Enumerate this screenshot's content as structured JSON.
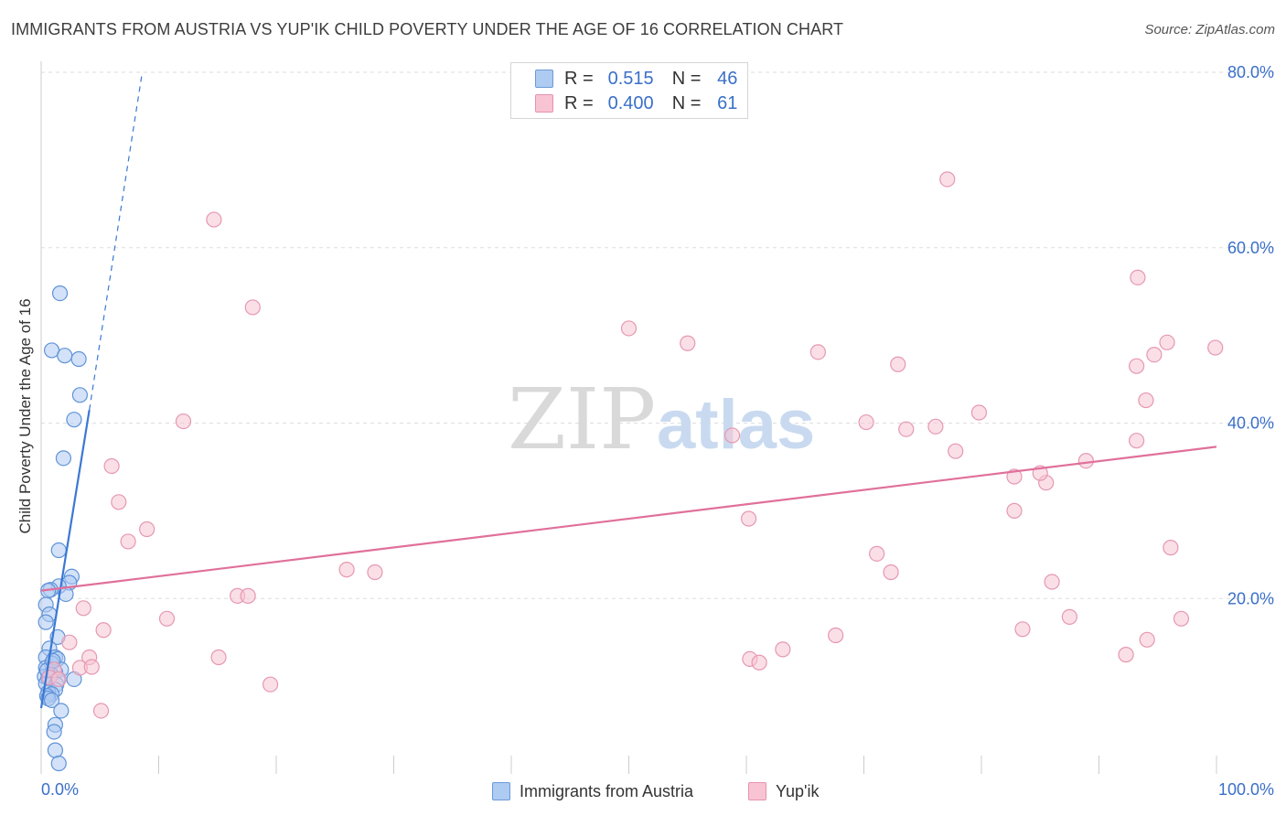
{
  "title": "IMMIGRANTS FROM AUSTRIA VS YUP'IK CHILD POVERTY UNDER THE AGE OF 16 CORRELATION CHART",
  "source": "Source: ZipAtlas.com",
  "watermark": {
    "zip": "ZIP",
    "atlas": "atlas"
  },
  "colors": {
    "blue": "#3a78d4",
    "blue_fill": "#aecbf2",
    "pink": "#e0709a",
    "pink_fill": "#f8c4d4",
    "grid": "#dddddd",
    "tick_label": "#3a6fc8"
  },
  "legend": {
    "r_key": "R =",
    "n_key": "N =",
    "rows": [
      {
        "r": "0.515",
        "n": "46"
      },
      {
        "r": "0.400",
        "n": "61"
      }
    ]
  },
  "bottom_legend": [
    "Immigrants from Austria",
    "Yup'ik"
  ],
  "chart_data": {
    "type": "scatter",
    "title": "IMMIGRANTS FROM AUSTRIA VS YUP'IK CHILD POVERTY UNDER THE AGE OF 16 CORRELATION CHART",
    "xlabel": "",
    "ylabel": "Child Poverty Under the Age of 16",
    "xlim": [
      0,
      100
    ],
    "ylim": [
      0,
      80
    ],
    "x_tick_labels": [
      "0.0%",
      "100.0%"
    ],
    "y_ticks": [
      {
        "value": 20,
        "label": "20.0%"
      },
      {
        "value": 40,
        "label": "40.0%"
      },
      {
        "value": 60,
        "label": "60.0%"
      },
      {
        "value": 80,
        "label": "80.0%"
      }
    ],
    "grid": true,
    "series": [
      {
        "name": "Immigrants from Austria",
        "R": 0.515,
        "N": 46,
        "trend": {
          "x0": 0,
          "y0": 7.5,
          "x1": 4.1,
          "y1": 41.5,
          "dash_to": {
            "x": 8.6,
            "y": 80
          }
        },
        "points": [
          [
            1.6,
            54.8
          ],
          [
            0.9,
            48.3
          ],
          [
            2.0,
            47.7
          ],
          [
            3.2,
            47.3
          ],
          [
            3.3,
            43.2
          ],
          [
            2.8,
            40.4
          ],
          [
            1.9,
            36.0
          ],
          [
            1.5,
            25.5
          ],
          [
            2.6,
            22.5
          ],
          [
            2.4,
            21.8
          ],
          [
            1.5,
            21.4
          ],
          [
            0.8,
            21.0
          ],
          [
            0.6,
            20.9
          ],
          [
            2.1,
            20.5
          ],
          [
            0.4,
            19.3
          ],
          [
            0.7,
            18.2
          ],
          [
            0.4,
            17.3
          ],
          [
            1.4,
            15.6
          ],
          [
            0.7,
            14.3
          ],
          [
            0.4,
            13.3
          ],
          [
            1.2,
            13.3
          ],
          [
            1.4,
            13.1
          ],
          [
            0.9,
            12.6
          ],
          [
            0.4,
            12.1
          ],
          [
            1.7,
            11.9
          ],
          [
            1.2,
            11.6
          ],
          [
            0.8,
            11.4
          ],
          [
            0.3,
            11.1
          ],
          [
            0.6,
            10.9
          ],
          [
            1.4,
            10.8
          ],
          [
            2.8,
            10.8
          ],
          [
            0.4,
            10.3
          ],
          [
            1.3,
            10.2
          ],
          [
            1.2,
            9.6
          ],
          [
            0.6,
            9.3
          ],
          [
            0.9,
            9.1
          ],
          [
            0.5,
            8.9
          ],
          [
            0.6,
            8.6
          ],
          [
            0.9,
            8.4
          ],
          [
            1.7,
            7.2
          ],
          [
            1.2,
            5.6
          ],
          [
            1.1,
            4.8
          ],
          [
            1.2,
            2.7
          ],
          [
            1.5,
            1.2
          ],
          [
            0.5,
            11.8
          ],
          [
            1.0,
            12.9
          ]
        ]
      },
      {
        "name": "Yup'ik",
        "R": 0.4,
        "N": 61,
        "trend": {
          "x0": 0,
          "y0": 20.9,
          "x1": 100,
          "y1": 37.3
        },
        "points": [
          [
            14.7,
            63.2
          ],
          [
            18.0,
            53.2
          ],
          [
            77.1,
            67.8
          ],
          [
            93.3,
            56.6
          ],
          [
            50.0,
            50.8
          ],
          [
            55.0,
            49.1
          ],
          [
            66.1,
            48.1
          ],
          [
            72.9,
            46.7
          ],
          [
            95.8,
            49.2
          ],
          [
            94.7,
            47.8
          ],
          [
            99.9,
            48.6
          ],
          [
            93.2,
            46.5
          ],
          [
            94.0,
            42.6
          ],
          [
            79.8,
            41.2
          ],
          [
            70.2,
            40.1
          ],
          [
            76.1,
            39.6
          ],
          [
            73.6,
            39.3
          ],
          [
            58.8,
            38.6
          ],
          [
            93.2,
            38.0
          ],
          [
            88.9,
            35.7
          ],
          [
            82.8,
            33.9
          ],
          [
            85.5,
            33.2
          ],
          [
            77.8,
            36.8
          ],
          [
            12.1,
            40.2
          ],
          [
            6.0,
            35.1
          ],
          [
            6.6,
            31.0
          ],
          [
            9.0,
            27.9
          ],
          [
            7.4,
            26.5
          ],
          [
            71.1,
            25.1
          ],
          [
            96.1,
            25.8
          ],
          [
            85.0,
            34.3
          ],
          [
            60.2,
            29.1
          ],
          [
            82.8,
            30.0
          ],
          [
            26.0,
            23.3
          ],
          [
            28.4,
            23.0
          ],
          [
            72.3,
            23.0
          ],
          [
            86.0,
            21.9
          ],
          [
            16.7,
            20.3
          ],
          [
            17.6,
            20.3
          ],
          [
            3.6,
            18.9
          ],
          [
            10.7,
            17.7
          ],
          [
            87.5,
            17.9
          ],
          [
            97.0,
            17.7
          ],
          [
            5.3,
            16.4
          ],
          [
            83.5,
            16.5
          ],
          [
            67.6,
            15.8
          ],
          [
            94.1,
            15.3
          ],
          [
            2.4,
            15.0
          ],
          [
            63.1,
            14.2
          ],
          [
            92.3,
            13.6
          ],
          [
            15.1,
            13.3
          ],
          [
            60.3,
            13.1
          ],
          [
            61.1,
            12.7
          ],
          [
            4.1,
            13.3
          ],
          [
            3.3,
            12.1
          ],
          [
            4.3,
            12.2
          ],
          [
            1.1,
            11.9
          ],
          [
            19.5,
            10.2
          ],
          [
            5.1,
            7.2
          ],
          [
            0.7,
            11.0
          ],
          [
            1.5,
            10.8
          ]
        ]
      }
    ]
  }
}
